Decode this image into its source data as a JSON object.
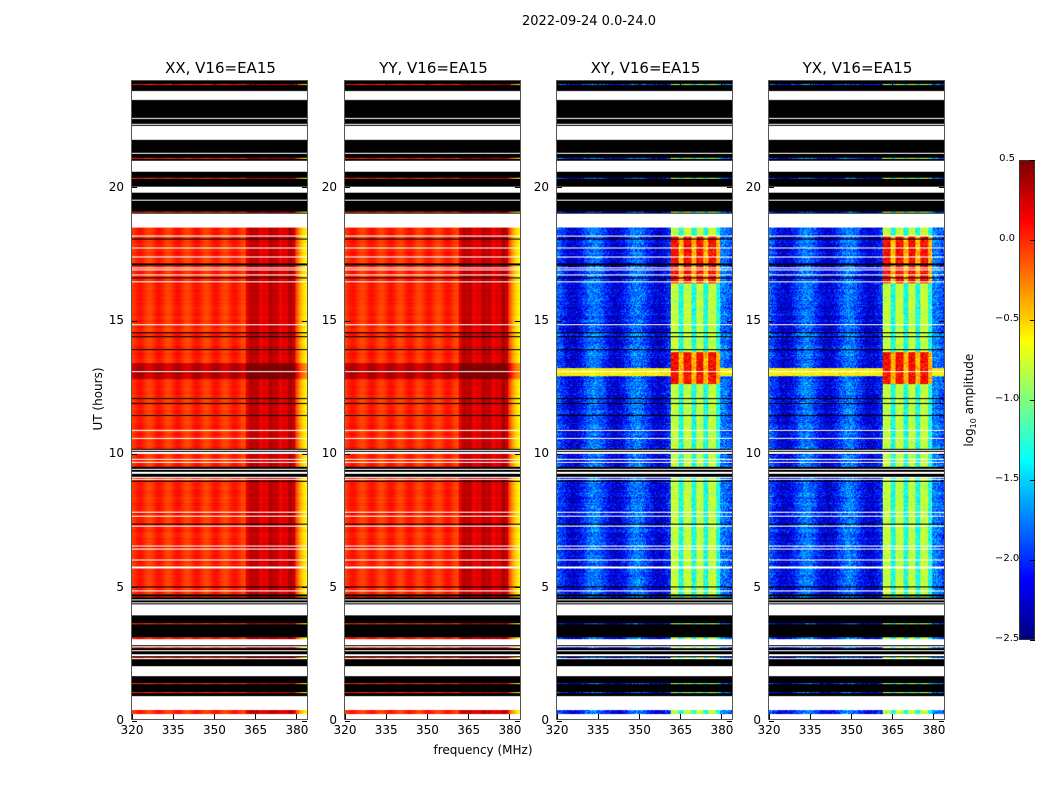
{
  "chart_data": {
    "type": "heatmap",
    "title": "2022-09-24 0.0-24.0",
    "xlabel": "frequency (MHz)",
    "ylabel": "UT (hours)",
    "xlim": [
      320,
      384.4
    ],
    "ylim": [
      0,
      24
    ],
    "xticks": [
      320,
      335,
      350,
      365,
      380
    ],
    "yticks": [
      0,
      5,
      10,
      15,
      20
    ],
    "colorbar": {
      "label": "log10 amplitude",
      "label_main": "log",
      "label_sub": "10",
      "label_rest": " amplitude",
      "colormap": "jet",
      "range": [
        -2.5,
        0.5
      ],
      "ticks": [
        "0.5",
        "0.0",
        "−0.5",
        "−1.0",
        "−1.5",
        "−2.0",
        "−2.5"
      ],
      "tick_values": [
        0.5,
        0.0,
        -0.5,
        -1.0,
        -1.5,
        -2.0,
        -2.5
      ]
    },
    "time_segments": [
      {
        "start": 0.0,
        "end": 0.2,
        "state": "flagged"
      },
      {
        "start": 0.2,
        "end": 0.35,
        "state": "data"
      },
      {
        "start": 0.35,
        "end": 0.8,
        "state": "flagged"
      },
      {
        "start": 0.8,
        "end": 1.6,
        "state": "zero"
      },
      {
        "start": 1.6,
        "end": 2.0,
        "state": "flagged"
      },
      {
        "start": 2.0,
        "end": 2.8,
        "state": "zero"
      },
      {
        "start": 2.8,
        "end": 3.0,
        "state": "flagged"
      },
      {
        "start": 3.0,
        "end": 3.9,
        "state": "zero"
      },
      {
        "start": 3.9,
        "end": 4.2,
        "state": "flagged"
      },
      {
        "start": 4.2,
        "end": 4.7,
        "state": "zero"
      },
      {
        "start": 4.7,
        "end": 9.0,
        "state": "data"
      },
      {
        "start": 9.0,
        "end": 9.5,
        "state": "zero"
      },
      {
        "start": 9.5,
        "end": 18.5,
        "state": "data"
      },
      {
        "start": 18.5,
        "end": 19.0,
        "state": "flagged"
      },
      {
        "start": 19.0,
        "end": 19.8,
        "state": "zero"
      },
      {
        "start": 19.8,
        "end": 20.0,
        "state": "flagged"
      },
      {
        "start": 20.0,
        "end": 20.6,
        "state": "zero"
      },
      {
        "start": 20.6,
        "end": 21.0,
        "state": "flagged"
      },
      {
        "start": 21.0,
        "end": 21.8,
        "state": "zero"
      },
      {
        "start": 21.8,
        "end": 22.3,
        "state": "flagged"
      },
      {
        "start": 22.3,
        "end": 23.3,
        "state": "zero"
      },
      {
        "start": 23.3,
        "end": 23.6,
        "state": "flagged"
      },
      {
        "start": 23.6,
        "end": 24.0,
        "state": "zero"
      }
    ],
    "panels": [
      {
        "title": "XX, V16=EA15",
        "kind": "parallel",
        "base_level": 0.0,
        "band_level": 0.3,
        "band_mhz": [
          362,
          380
        ]
      },
      {
        "title": "YY, V16=EA15",
        "kind": "parallel",
        "base_level": 0.0,
        "band_level": 0.3,
        "band_mhz": [
          362,
          380
        ]
      },
      {
        "title": "XY, V16=EA15",
        "kind": "cross",
        "base_level": -2.0,
        "band_level": -0.8,
        "band_mhz": [
          362,
          380
        ]
      },
      {
        "title": "YX, V16=EA15",
        "kind": "cross",
        "base_level": -2.0,
        "band_level": -0.8,
        "band_mhz": [
          362,
          380
        ]
      }
    ]
  }
}
